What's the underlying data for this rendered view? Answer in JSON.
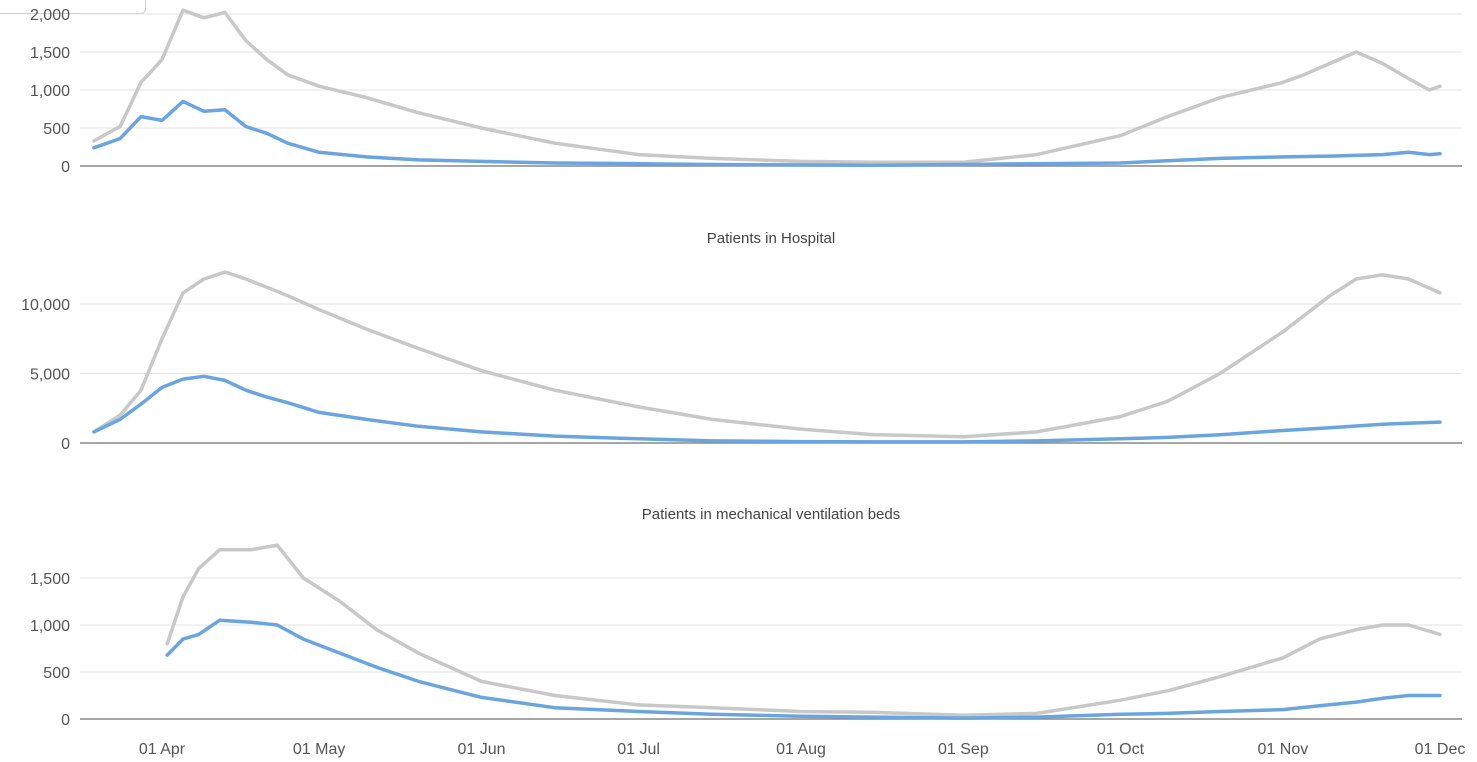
{
  "colors": {
    "series_primary": "#6aa5e0",
    "series_secondary": "#c8c8c8",
    "grid": "#e3e3e3",
    "axis": "#888888"
  },
  "chart_data": [
    {
      "type": "line",
      "title": "",
      "ylim": [
        0,
        2000
      ],
      "yticks": [
        0,
        500,
        1000,
        1500,
        2000
      ],
      "ytick_labels": [
        "0",
        "500",
        "1,000",
        "1,500",
        "2,000"
      ],
      "grid": true,
      "series": [
        {
          "x": [
            "2020-03-19",
            "2020-03-24",
            "2020-03-28",
            "2020-04-01",
            "2020-04-05",
            "2020-04-09",
            "2020-04-13",
            "2020-04-17",
            "2020-04-21",
            "2020-04-25",
            "2020-05-01",
            "2020-05-10",
            "2020-05-20",
            "2020-06-01",
            "2020-06-15",
            "2020-07-01",
            "2020-07-15",
            "2020-08-01",
            "2020-08-15",
            "2020-09-01",
            "2020-09-15",
            "2020-10-01",
            "2020-10-10",
            "2020-10-20",
            "2020-11-01",
            "2020-11-05",
            "2020-11-10",
            "2020-11-15",
            "2020-11-20",
            "2020-11-25",
            "2020-11-29",
            "2020-12-01"
          ],
          "values": [
            330,
            520,
            1100,
            1400,
            2050,
            1950,
            2020,
            1650,
            1400,
            1200,
            1050,
            900,
            700,
            500,
            300,
            150,
            100,
            60,
            50,
            50,
            150,
            400,
            650,
            900,
            1100,
            1200,
            1350,
            1500,
            1350,
            1150,
            1000,
            1050
          ]
        },
        {
          "x": [
            "2020-03-19",
            "2020-03-24",
            "2020-03-28",
            "2020-04-01",
            "2020-04-05",
            "2020-04-09",
            "2020-04-13",
            "2020-04-17",
            "2020-04-21",
            "2020-04-25",
            "2020-05-01",
            "2020-05-10",
            "2020-05-20",
            "2020-06-01",
            "2020-06-15",
            "2020-07-01",
            "2020-07-15",
            "2020-08-01",
            "2020-08-15",
            "2020-09-01",
            "2020-09-15",
            "2020-10-01",
            "2020-10-10",
            "2020-10-20",
            "2020-11-01",
            "2020-11-10",
            "2020-11-20",
            "2020-11-25",
            "2020-11-29",
            "2020-12-01"
          ],
          "values": [
            240,
            360,
            650,
            600,
            850,
            720,
            740,
            520,
            430,
            300,
            180,
            120,
            80,
            60,
            40,
            30,
            20,
            15,
            10,
            20,
            30,
            40,
            70,
            100,
            120,
            130,
            150,
            180,
            150,
            160
          ]
        }
      ]
    },
    {
      "type": "line",
      "title": "Patients in Hospital",
      "ylim": [
        0,
        15000
      ],
      "yticks": [
        0,
        5000,
        10000
      ],
      "ytick_labels": [
        "0",
        "5,000",
        "10,000"
      ],
      "grid": true,
      "series": [
        {
          "x": [
            "2020-03-19",
            "2020-03-24",
            "2020-03-28",
            "2020-04-01",
            "2020-04-05",
            "2020-04-09",
            "2020-04-13",
            "2020-04-17",
            "2020-04-21",
            "2020-04-25",
            "2020-05-01",
            "2020-05-10",
            "2020-05-20",
            "2020-06-01",
            "2020-06-15",
            "2020-07-01",
            "2020-07-15",
            "2020-08-01",
            "2020-08-15",
            "2020-09-01",
            "2020-09-15",
            "2020-10-01",
            "2020-10-10",
            "2020-10-20",
            "2020-11-01",
            "2020-11-10",
            "2020-11-15",
            "2020-11-20",
            "2020-11-25",
            "2020-12-01"
          ],
          "values": [
            800,
            2000,
            3800,
            7500,
            10800,
            11800,
            12300,
            11800,
            11200,
            10600,
            9600,
            8200,
            6800,
            5200,
            3800,
            2600,
            1700,
            1000,
            600,
            450,
            800,
            1900,
            3000,
            5000,
            8000,
            10600,
            11800,
            12100,
            11800,
            10800
          ]
        },
        {
          "x": [
            "2020-03-19",
            "2020-03-24",
            "2020-03-28",
            "2020-04-01",
            "2020-04-05",
            "2020-04-09",
            "2020-04-13",
            "2020-04-17",
            "2020-04-21",
            "2020-04-25",
            "2020-05-01",
            "2020-05-10",
            "2020-05-20",
            "2020-06-01",
            "2020-06-15",
            "2020-07-01",
            "2020-07-15",
            "2020-08-01",
            "2020-08-15",
            "2020-09-01",
            "2020-09-15",
            "2020-10-01",
            "2020-10-10",
            "2020-10-20",
            "2020-11-01",
            "2020-11-10",
            "2020-11-20",
            "2020-12-01"
          ],
          "values": [
            800,
            1700,
            2800,
            4000,
            4600,
            4800,
            4500,
            3800,
            3300,
            2900,
            2200,
            1700,
            1200,
            800,
            500,
            300,
            150,
            100,
            80,
            80,
            150,
            300,
            400,
            600,
            900,
            1100,
            1350,
            1500
          ]
        }
      ]
    },
    {
      "type": "line",
      "title": "Patients in mechanical ventilation beds",
      "ylim": [
        0,
        2000
      ],
      "yticks": [
        0,
        500,
        1000,
        1500
      ],
      "ytick_labels": [
        "0",
        "500",
        "1,000",
        "1,500"
      ],
      "grid": true,
      "x_tick_labels": [
        "01 Apr",
        "01 May",
        "01 Jun",
        "01 Jul",
        "01 Aug",
        "01 Sep",
        "01 Oct",
        "01 Nov",
        "01 Dec"
      ],
      "series": [
        {
          "x": [
            "2020-04-02",
            "2020-04-05",
            "2020-04-08",
            "2020-04-12",
            "2020-04-18",
            "2020-04-23",
            "2020-04-28",
            "2020-05-05",
            "2020-05-12",
            "2020-05-20",
            "2020-06-01",
            "2020-06-15",
            "2020-07-01",
            "2020-07-15",
            "2020-08-01",
            "2020-08-15",
            "2020-09-01",
            "2020-09-15",
            "2020-10-01",
            "2020-10-10",
            "2020-10-20",
            "2020-11-01",
            "2020-11-08",
            "2020-11-15",
            "2020-11-20",
            "2020-11-25",
            "2020-12-01"
          ],
          "values": [
            800,
            1300,
            1600,
            1800,
            1800,
            1850,
            1500,
            1250,
            950,
            700,
            400,
            250,
            150,
            120,
            80,
            70,
            40,
            60,
            200,
            300,
            450,
            650,
            850,
            950,
            1000,
            1000,
            900
          ]
        },
        {
          "x": [
            "2020-04-02",
            "2020-04-05",
            "2020-04-08",
            "2020-04-12",
            "2020-04-18",
            "2020-04-23",
            "2020-04-28",
            "2020-05-05",
            "2020-05-12",
            "2020-05-20",
            "2020-06-01",
            "2020-06-15",
            "2020-07-01",
            "2020-07-15",
            "2020-08-01",
            "2020-08-15",
            "2020-09-01",
            "2020-09-15",
            "2020-10-01",
            "2020-10-10",
            "2020-10-20",
            "2020-11-01",
            "2020-11-08",
            "2020-11-15",
            "2020-11-20",
            "2020-11-25",
            "2020-12-01"
          ],
          "values": [
            680,
            850,
            900,
            1050,
            1030,
            1000,
            850,
            700,
            550,
            400,
            230,
            120,
            80,
            50,
            30,
            20,
            10,
            20,
            50,
            60,
            80,
            100,
            140,
            180,
            220,
            250,
            250
          ]
        }
      ]
    }
  ]
}
